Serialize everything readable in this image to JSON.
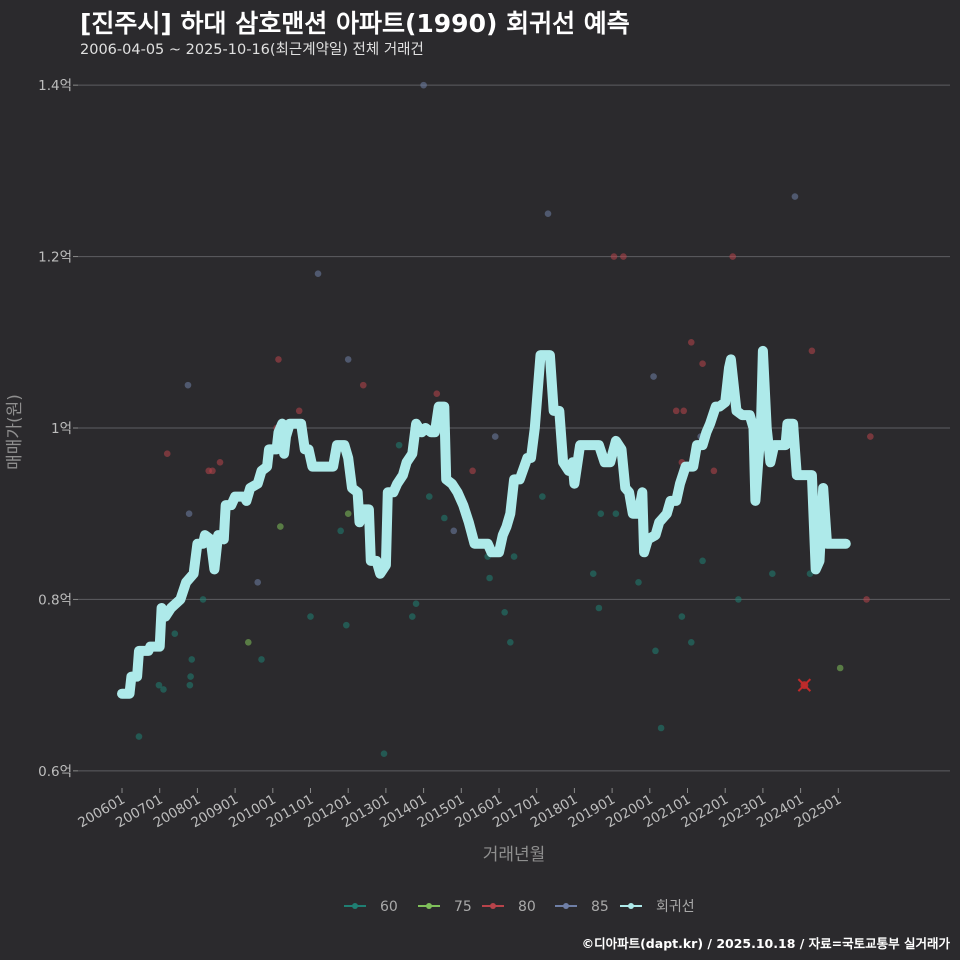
{
  "title": "[진주시] 하대 삼호맨션 아파트(1990) 회귀선 예측",
  "subtitle": "2006-04-05 ~ 2025-10-16(최근계약일) 전체 거래건",
  "caption": "©디아파트(dapt.kr) / 2025.10.18 / 자료=국토교통부 실거래가",
  "chart_data": {
    "type": "scatter",
    "xlabel": "거래년월",
    "ylabel": "매매가(원)",
    "ylim": [
      0.58,
      1.42
    ],
    "xlim": [
      2005.7,
      2025.95
    ],
    "yticks": [
      {
        "v": 0.6,
        "label": "0.6억"
      },
      {
        "v": 0.8,
        "label": "0.8억"
      },
      {
        "v": 1.0,
        "label": "1억"
      },
      {
        "v": 1.2,
        "label": "1.2억"
      },
      {
        "v": 1.4,
        "label": "1.4억"
      }
    ],
    "xticks": [
      {
        "v": 2006.0,
        "label": "200601"
      },
      {
        "v": 2007.0,
        "label": "200701"
      },
      {
        "v": 2008.0,
        "label": "200801"
      },
      {
        "v": 2009.0,
        "label": "200901"
      },
      {
        "v": 2010.0,
        "label": "201001"
      },
      {
        "v": 2011.0,
        "label": "201101"
      },
      {
        "v": 2012.0,
        "label": "201201"
      },
      {
        "v": 2013.0,
        "label": "201301"
      },
      {
        "v": 2014.0,
        "label": "201401"
      },
      {
        "v": 2015.0,
        "label": "201501"
      },
      {
        "v": 2016.0,
        "label": "201601"
      },
      {
        "v": 2017.0,
        "label": "201701"
      },
      {
        "v": 2018.0,
        "label": "201801"
      },
      {
        "v": 2019.0,
        "label": "201901"
      },
      {
        "v": 2020.0,
        "label": "202001"
      },
      {
        "v": 2021.0,
        "label": "202101"
      },
      {
        "v": 2022.0,
        "label": "202201"
      },
      {
        "v": 2023.0,
        "label": "202301"
      },
      {
        "v": 2024.0,
        "label": "202401"
      },
      {
        "v": 2025.0,
        "label": "202501"
      }
    ],
    "series": [
      {
        "name": "60",
        "color": "#1f7f73",
        "points": [
          [
            2006.25,
            0.69
          ],
          [
            2006.45,
            0.64
          ],
          [
            2006.98,
            0.7
          ],
          [
            2007.1,
            0.695
          ],
          [
            2007.4,
            0.76
          ],
          [
            2007.8,
            0.7
          ],
          [
            2007.82,
            0.71
          ],
          [
            2007.85,
            0.73
          ],
          [
            2008.15,
            0.8
          ],
          [
            2009.7,
            0.73
          ],
          [
            2011.0,
            0.78
          ],
          [
            2011.8,
            0.88
          ],
          [
            2011.95,
            0.77
          ],
          [
            2012.95,
            0.62
          ],
          [
            2013.35,
            0.98
          ],
          [
            2013.7,
            0.78
          ],
          [
            2013.8,
            0.795
          ],
          [
            2014.15,
            0.92
          ],
          [
            2014.55,
            0.895
          ],
          [
            2015.7,
            0.85
          ],
          [
            2015.75,
            0.825
          ],
          [
            2016.15,
            0.785
          ],
          [
            2016.3,
            0.75
          ],
          [
            2016.4,
            0.85
          ],
          [
            2017.15,
            0.92
          ],
          [
            2018.5,
            0.83
          ],
          [
            2018.65,
            0.79
          ],
          [
            2018.7,
            0.9
          ],
          [
            2019.1,
            0.9
          ],
          [
            2019.7,
            0.82
          ],
          [
            2020.15,
            0.74
          ],
          [
            2020.3,
            0.65
          ],
          [
            2020.85,
            0.78
          ],
          [
            2021.1,
            0.75
          ],
          [
            2021.4,
            0.845
          ],
          [
            2022.35,
            0.8
          ],
          [
            2023.25,
            0.83
          ],
          [
            2024.25,
            0.83
          ]
        ]
      },
      {
        "name": "75",
        "color": "#7fbf5a",
        "points": [
          [
            2009.35,
            0.75
          ],
          [
            2010.2,
            0.885
          ],
          [
            2012.0,
            0.9
          ],
          [
            2014.45,
            1.02
          ],
          [
            2025.05,
            0.72
          ]
        ]
      },
      {
        "name": "80",
        "color": "#b8434a",
        "points": [
          [
            2007.2,
            0.97
          ],
          [
            2008.3,
            0.95
          ],
          [
            2008.4,
            0.95
          ],
          [
            2008.6,
            0.96
          ],
          [
            2010.1,
            1.0
          ],
          [
            2010.15,
            1.08
          ],
          [
            2010.7,
            1.02
          ],
          [
            2012.4,
            1.05
          ],
          [
            2014.35,
            1.04
          ],
          [
            2015.3,
            0.95
          ],
          [
            2020.7,
            1.02
          ],
          [
            2020.85,
            0.96
          ],
          [
            2020.9,
            1.02
          ],
          [
            2021.1,
            1.1
          ],
          [
            2021.4,
            1.075
          ],
          [
            2021.7,
            0.95
          ],
          [
            2022.2,
            1.2
          ],
          [
            2024.3,
            1.09
          ],
          [
            2024.1,
            0.7
          ],
          [
            2025.75,
            0.8
          ],
          [
            2025.85,
            0.99
          ],
          [
            2019.05,
            1.2
          ],
          [
            2019.3,
            1.2
          ]
        ]
      },
      {
        "name": "85",
        "color": "#6f7fa6",
        "points": [
          [
            2007.75,
            1.05
          ],
          [
            2007.78,
            0.9
          ],
          [
            2009.6,
            0.82
          ],
          [
            2011.2,
            1.18
          ],
          [
            2012.0,
            1.08
          ],
          [
            2014.0,
            1.4
          ],
          [
            2014.8,
            0.88
          ],
          [
            2015.9,
            0.99
          ],
          [
            2017.3,
            1.25
          ],
          [
            2020.1,
            1.06
          ],
          [
            2023.85,
            1.27
          ],
          [
            2021.35,
            0.99
          ]
        ]
      }
    ],
    "outlier": {
      "x": 2024.1,
      "y": 0.7,
      "color": "#c02a2a",
      "marker": "x"
    },
    "regression": {
      "name": "회귀선",
      "color": "#aeeaea",
      "points": [
        [
          2006.0,
          0.69
        ],
        [
          2006.2,
          0.69
        ],
        [
          2006.25,
          0.71
        ],
        [
          2006.4,
          0.71
        ],
        [
          2006.45,
          0.74
        ],
        [
          2006.7,
          0.74
        ],
        [
          2006.75,
          0.745
        ],
        [
          2007.0,
          0.745
        ],
        [
          2007.05,
          0.79
        ],
        [
          2007.15,
          0.78
        ],
        [
          2007.3,
          0.79
        ],
        [
          2007.55,
          0.8
        ],
        [
          2007.7,
          0.82
        ],
        [
          2007.9,
          0.83
        ],
        [
          2008.0,
          0.865
        ],
        [
          2008.15,
          0.865
        ],
        [
          2008.2,
          0.875
        ],
        [
          2008.35,
          0.87
        ],
        [
          2008.45,
          0.835
        ],
        [
          2008.55,
          0.875
        ],
        [
          2008.7,
          0.87
        ],
        [
          2008.75,
          0.91
        ],
        [
          2008.9,
          0.91
        ],
        [
          2009.0,
          0.92
        ],
        [
          2009.25,
          0.92
        ],
        [
          2009.3,
          0.915
        ],
        [
          2009.4,
          0.93
        ],
        [
          2009.6,
          0.935
        ],
        [
          2009.7,
          0.95
        ],
        [
          2009.85,
          0.955
        ],
        [
          2009.9,
          0.975
        ],
        [
          2010.1,
          0.975
        ],
        [
          2010.15,
          0.995
        ],
        [
          2010.25,
          1.005
        ],
        [
          2010.3,
          0.97
        ],
        [
          2010.35,
          0.99
        ],
        [
          2010.45,
          1.005
        ],
        [
          2010.6,
          1.005
        ],
        [
          2010.75,
          1.005
        ],
        [
          2010.85,
          0.975
        ],
        [
          2010.95,
          0.975
        ],
        [
          2011.05,
          0.955
        ],
        [
          2011.35,
          0.955
        ],
        [
          2011.5,
          0.955
        ],
        [
          2011.6,
          0.955
        ],
        [
          2011.7,
          0.98
        ],
        [
          2011.9,
          0.98
        ],
        [
          2012.0,
          0.965
        ],
        [
          2012.1,
          0.93
        ],
        [
          2012.25,
          0.925
        ],
        [
          2012.3,
          0.89
        ],
        [
          2012.4,
          0.905
        ],
        [
          2012.55,
          0.905
        ],
        [
          2012.6,
          0.845
        ],
        [
          2012.75,
          0.845
        ],
        [
          2012.85,
          0.83
        ],
        [
          2013.0,
          0.84
        ],
        [
          2013.05,
          0.925
        ],
        [
          2013.2,
          0.925
        ],
        [
          2013.3,
          0.935
        ],
        [
          2013.45,
          0.945
        ],
        [
          2013.55,
          0.96
        ],
        [
          2013.7,
          0.97
        ],
        [
          2013.8,
          1.005
        ],
        [
          2013.95,
          0.995
        ],
        [
          2014.05,
          1.0
        ],
        [
          2014.2,
          0.995
        ],
        [
          2014.3,
          0.995
        ],
        [
          2014.4,
          1.025
        ],
        [
          2014.55,
          1.025
        ],
        [
          2014.6,
          0.94
        ],
        [
          2014.75,
          0.935
        ],
        [
          2014.9,
          0.925
        ],
        [
          2015.05,
          0.91
        ],
        [
          2015.2,
          0.89
        ],
        [
          2015.35,
          0.865
        ],
        [
          2015.5,
          0.865
        ],
        [
          2015.7,
          0.865
        ],
        [
          2015.8,
          0.855
        ],
        [
          2016.0,
          0.855
        ],
        [
          2016.1,
          0.875
        ],
        [
          2016.2,
          0.885
        ],
        [
          2016.3,
          0.9
        ],
        [
          2016.4,
          0.94
        ],
        [
          2016.55,
          0.94
        ],
        [
          2016.75,
          0.965
        ],
        [
          2016.85,
          0.965
        ],
        [
          2016.95,
          1.0
        ],
        [
          2017.1,
          1.085
        ],
        [
          2017.35,
          1.085
        ],
        [
          2017.45,
          1.02
        ],
        [
          2017.6,
          1.02
        ],
        [
          2017.7,
          0.96
        ],
        [
          2017.85,
          0.95
        ],
        [
          2017.95,
          0.96
        ],
        [
          2018.0,
          0.935
        ],
        [
          2018.15,
          0.98
        ],
        [
          2018.3,
          0.98
        ],
        [
          2018.5,
          0.98
        ],
        [
          2018.65,
          0.98
        ],
        [
          2018.8,
          0.96
        ],
        [
          2018.95,
          0.96
        ],
        [
          2019.1,
          0.985
        ],
        [
          2019.25,
          0.975
        ],
        [
          2019.35,
          0.93
        ],
        [
          2019.45,
          0.925
        ],
        [
          2019.55,
          0.9
        ],
        [
          2019.7,
          0.9
        ],
        [
          2019.8,
          0.925
        ],
        [
          2019.85,
          0.855
        ],
        [
          2019.95,
          0.87
        ],
        [
          2020.15,
          0.875
        ],
        [
          2020.25,
          0.89
        ],
        [
          2020.35,
          0.895
        ],
        [
          2020.45,
          0.9
        ],
        [
          2020.55,
          0.915
        ],
        [
          2020.7,
          0.915
        ],
        [
          2020.8,
          0.935
        ],
        [
          2020.95,
          0.955
        ],
        [
          2021.15,
          0.955
        ],
        [
          2021.25,
          0.98
        ],
        [
          2021.4,
          0.98
        ],
        [
          2021.5,
          0.995
        ],
        [
          2021.6,
          1.005
        ],
        [
          2021.75,
          1.025
        ],
        [
          2021.85,
          1.025
        ],
        [
          2022.0,
          1.03
        ],
        [
          2022.1,
          1.07
        ],
        [
          2022.15,
          1.08
        ],
        [
          2022.3,
          1.02
        ],
        [
          2022.45,
          1.015
        ],
        [
          2022.65,
          1.015
        ],
        [
          2022.75,
          1.0
        ],
        [
          2022.8,
          0.915
        ],
        [
          2022.95,
          1.005
        ],
        [
          2023.0,
          1.09
        ],
        [
          2023.1,
          1.0
        ],
        [
          2023.2,
          0.96
        ],
        [
          2023.3,
          0.98
        ],
        [
          2023.5,
          0.98
        ],
        [
          2023.6,
          0.98
        ],
        [
          2023.65,
          1.005
        ],
        [
          2023.8,
          1.005
        ],
        [
          2023.9,
          0.945
        ],
        [
          2024.1,
          0.945
        ],
        [
          2024.3,
          0.945
        ],
        [
          2024.4,
          0.835
        ],
        [
          2024.5,
          0.845
        ],
        [
          2024.6,
          0.93
        ],
        [
          2024.7,
          0.865
        ],
        [
          2024.9,
          0.865
        ],
        [
          2025.1,
          0.865
        ],
        [
          2025.2,
          0.865
        ]
      ]
    },
    "legend": [
      "60",
      "75",
      "80",
      "85",
      "회귀선"
    ],
    "legend_position": "bottom"
  }
}
